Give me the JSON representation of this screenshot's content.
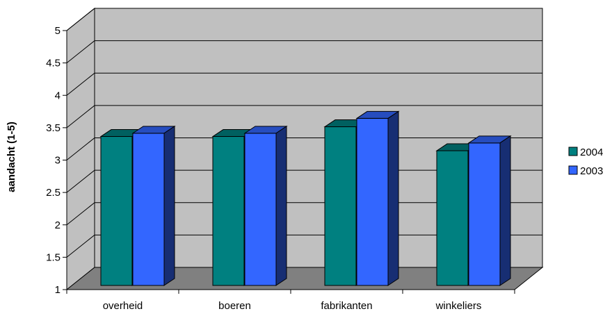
{
  "chart_data": {
    "type": "bar",
    "title": "",
    "xlabel": "",
    "ylabel": "aandacht (1-5)",
    "ylim": [
      1,
      5
    ],
    "yticks": [
      "1",
      "1.5",
      "2",
      "2.5",
      "3",
      "3.5",
      "4",
      "4.5",
      "5"
    ],
    "categories": [
      "overheid",
      "boeren",
      "fabrikanten",
      "winkeliers"
    ],
    "series": [
      {
        "name": "2004",
        "values": [
          3.3,
          3.3,
          3.45,
          3.08
        ],
        "color": "#008080"
      },
      {
        "name": "2003",
        "values": [
          3.35,
          3.35,
          3.58,
          3.2
        ],
        "color": "#3366ff"
      }
    ],
    "grid": true,
    "legend_position": "right",
    "style": "3d-clustered-column",
    "wall_color": "#c0c0c0",
    "floor_color": "#808080"
  }
}
